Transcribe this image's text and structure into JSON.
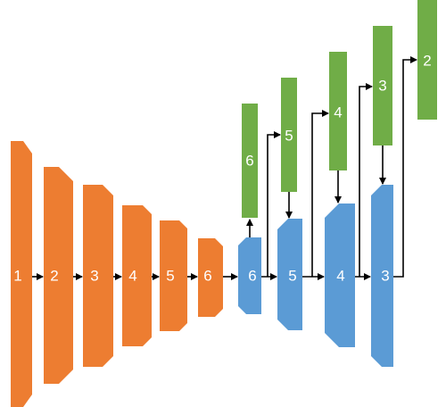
{
  "colors": {
    "encoder": "#ED7D31",
    "decoder": "#5B9BD5",
    "branch": "#70AD47",
    "arrow": "#000000",
    "label": "#ffffff"
  },
  "encoder": [
    {
      "label": "1"
    },
    {
      "label": "2"
    },
    {
      "label": "3"
    },
    {
      "label": "4"
    },
    {
      "label": "5"
    },
    {
      "label": "6"
    }
  ],
  "decoder": [
    {
      "label": "6"
    },
    {
      "label": "5"
    },
    {
      "label": "4"
    },
    {
      "label": "3"
    }
  ],
  "branches": [
    {
      "label": "6"
    },
    {
      "label": "5"
    },
    {
      "label": "4"
    },
    {
      "label": "3"
    },
    {
      "label": "2"
    }
  ]
}
